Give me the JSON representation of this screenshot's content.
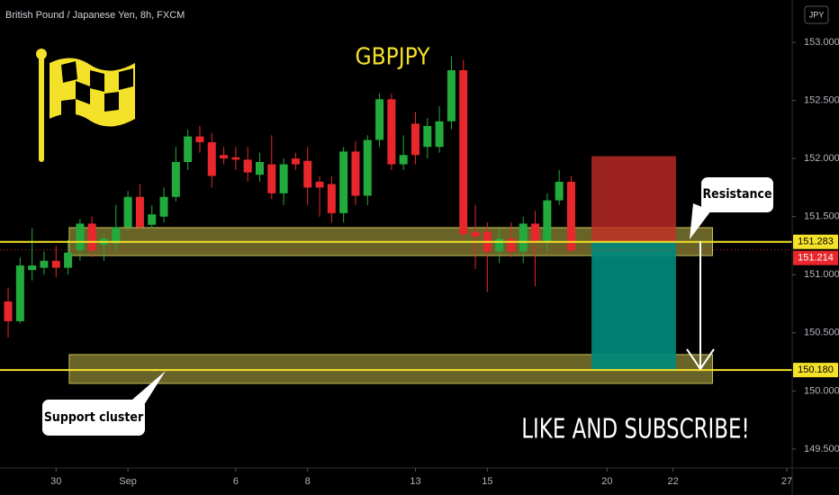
{
  "chart_data": {
    "type": "candlestick",
    "title": "British Pound / Japanese Yen, 8h, FXCM",
    "currency": "JPY",
    "symbol_label": "GBPJPY",
    "up_color": "#22ab3c",
    "down_color": "#e8272c",
    "grid": false,
    "open": [
      150.77,
      150.6,
      151.04,
      151.06,
      151.12,
      151.06,
      151.21,
      151.44,
      151.26,
      151.27,
      151.41,
      151.67,
      151.43,
      151.5,
      151.67,
      151.97,
      152.19,
      152.14,
      152.03,
      152.01,
      151.99,
      151.86,
      151.95,
      151.7,
      152.0,
      151.98,
      151.8,
      151.78,
      151.53,
      152.06,
      151.68,
      152.16,
      152.51,
      151.95,
      152.3,
      152.1,
      152.1,
      152.32,
      152.76,
      151.37,
      151.37,
      151.2,
      151.31,
      151.2,
      151.44,
      151.29,
      151.64,
      151.8
    ],
    "high": [
      150.89,
      151.15,
      151.4,
      151.2,
      151.25,
      151.3,
      151.48,
      151.5,
      151.35,
      151.6,
      151.72,
      151.78,
      151.6,
      151.75,
      152.1,
      152.25,
      152.28,
      152.22,
      152.1,
      152.1,
      152.1,
      152.05,
      152.2,
      152.0,
      152.05,
      152.1,
      151.85,
      151.85,
      152.1,
      152.15,
      152.2,
      152.56,
      152.56,
      152.2,
      152.4,
      152.35,
      152.45,
      152.88,
      152.85,
      151.6,
      151.45,
      151.4,
      151.45,
      151.5,
      151.55,
      151.7,
      151.9,
      151.85
    ],
    "low": [
      150.46,
      150.58,
      150.95,
      151.0,
      150.98,
      151.0,
      151.12,
      151.15,
      151.12,
      151.2,
      151.38,
      151.38,
      151.4,
      151.45,
      151.63,
      151.9,
      152.05,
      151.75,
      151.95,
      151.9,
      151.8,
      151.8,
      151.65,
      151.6,
      151.9,
      151.6,
      151.5,
      151.45,
      151.45,
      151.6,
      151.6,
      152.1,
      151.9,
      151.9,
      151.95,
      152.0,
      152.05,
      152.25,
      151.3,
      151.05,
      150.85,
      151.1,
      151.15,
      151.1,
      150.9,
      151.2,
      151.6,
      151.18
    ],
    "close": [
      150.6,
      151.08,
      151.08,
      151.12,
      151.06,
      151.19,
      151.44,
      151.21,
      151.31,
      151.41,
      151.67,
      151.41,
      151.52,
      151.67,
      151.97,
      152.19,
      152.14,
      151.85,
      152.0,
      151.99,
      151.88,
      151.97,
      151.7,
      151.95,
      151.95,
      151.75,
      151.75,
      151.53,
      152.06,
      151.68,
      152.16,
      152.51,
      151.95,
      152.03,
      152.03,
      152.28,
      152.32,
      152.76,
      151.35,
      151.33,
      151.2,
      151.31,
      151.2,
      151.44,
      151.29,
      151.64,
      151.8,
      151.21
    ],
    "xlim": [
      -0.68,
      65.45
    ],
    "ylim": [
      149.337,
      153.364
    ],
    "xticks": [
      {
        "value": 4,
        "label": "30"
      },
      {
        "value": 10,
        "label": "Sep"
      },
      {
        "value": 19,
        "label": "6"
      },
      {
        "value": 25,
        "label": "8"
      },
      {
        "value": 34,
        "label": "13"
      },
      {
        "value": 40,
        "label": "15"
      },
      {
        "value": 50,
        "label": "20"
      },
      {
        "value": 55.5,
        "label": "22"
      },
      {
        "value": 65,
        "label": "27"
      }
    ],
    "yticks": [
      {
        "value": 149.5,
        "label": "149.500"
      },
      {
        "value": 150,
        "label": "150.000"
      },
      {
        "value": 150.5,
        "label": "150.500"
      },
      {
        "value": 151,
        "label": "151.000"
      },
      {
        "value": 151.5,
        "label": "151.500"
      },
      {
        "value": 152,
        "label": "152.000"
      },
      {
        "value": 152.5,
        "label": "152.500"
      },
      {
        "value": 153,
        "label": "153.000"
      }
    ],
    "levels": [
      {
        "value": 151.283,
        "label": "151.283"
      },
      {
        "value": 150.18,
        "label": "150.180"
      }
    ],
    "last_price": {
      "value": 151.214,
      "label": "151.214"
    },
    "zones": [
      {
        "low": 151.165,
        "high": 151.405,
        "start": 5.1,
        "end": 58.8
      },
      {
        "low": 150.065,
        "high": 150.313,
        "start": 5.1,
        "end": 58.8
      }
    ],
    "position": {
      "stop": 152.02,
      "entry": 151.283,
      "target": 150.18,
      "start": 48.7,
      "end": 55.75
    },
    "annotations": {
      "resistance": "Resistance",
      "support": "Support cluster",
      "cta": "LIKE AND SUBSCRIBE!"
    }
  }
}
